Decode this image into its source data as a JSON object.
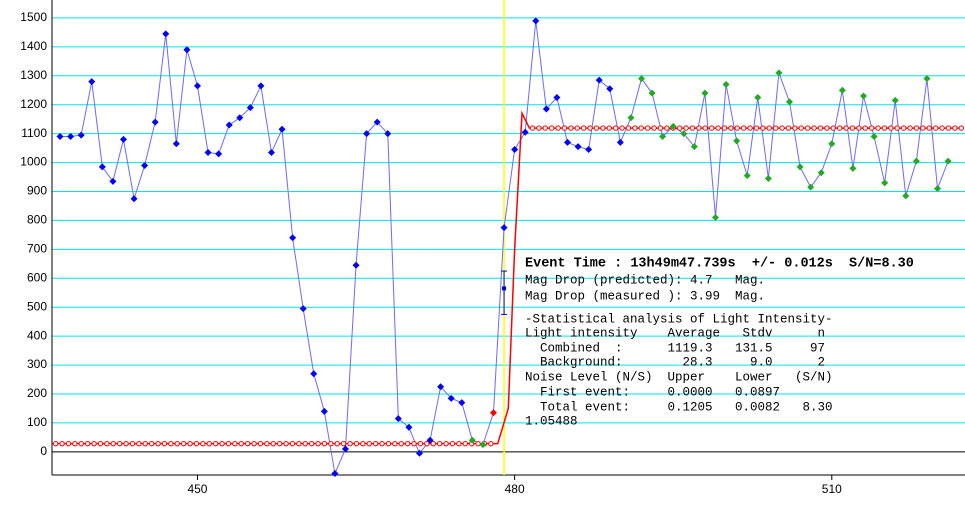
{
  "chart_data": {
    "type": "lightcurve",
    "x": [
      437,
      438,
      439,
      440,
      441,
      442,
      443,
      444,
      445,
      446,
      447,
      448,
      449,
      450,
      451,
      452,
      453,
      454,
      455,
      456,
      457,
      458,
      459,
      460,
      461,
      462,
      463,
      464,
      465,
      466,
      467,
      468,
      469,
      470,
      471,
      472,
      473,
      474,
      475,
      476,
      477,
      478,
      479,
      480,
      481,
      482,
      483,
      484,
      485,
      486,
      487,
      488,
      489,
      490,
      491,
      492,
      493,
      494,
      495,
      496,
      497,
      498,
      499,
      500,
      501,
      502,
      503,
      504,
      505,
      506,
      507,
      508,
      509,
      510,
      511,
      512,
      513,
      514,
      515,
      516,
      517,
      518,
      519,
      520,
      521
    ],
    "values": [
      1090,
      1090,
      1095,
      1280,
      985,
      935,
      1080,
      875,
      990,
      1140,
      1445,
      1065,
      1390,
      1265,
      1035,
      1030,
      1130,
      1155,
      1190,
      1265,
      1035,
      1115,
      740,
      495,
      270,
      140,
      -75,
      10,
      645,
      1100,
      1140,
      1100,
      115,
      85,
      -5,
      40,
      225,
      185,
      170,
      40,
      25,
      135,
      775,
      1045,
      1105,
      1490,
      1185,
      1225,
      1070,
      1055,
      1045,
      1285,
      1255,
      1070,
      1155,
      1290,
      1240,
      1090,
      1125,
      1100,
      1055,
      1240,
      810,
      1270,
      1075,
      955,
      1225,
      945,
      1310,
      1210,
      985,
      915,
      965,
      1065,
      1250,
      980,
      1230,
      1090,
      930,
      1215,
      885,
      1005,
      1290,
      910,
      1005
    ],
    "marker_colors": [
      "#0000ff",
      "#0000ff",
      "#0000ff",
      "#0000ff",
      "#0000ff",
      "#0000ff",
      "#0000ff",
      "#0000ff",
      "#0000ff",
      "#0000ff",
      "#0000ff",
      "#0000ff",
      "#0000ff",
      "#0000ff",
      "#0000ff",
      "#0000ff",
      "#0000ff",
      "#0000ff",
      "#0000ff",
      "#0000ff",
      "#0000ff",
      "#0000ff",
      "#0000ff",
      "#0000ff",
      "#0000ff",
      "#0000ff",
      "#0000ff",
      "#0000ff",
      "#0000ff",
      "#0000ff",
      "#0000ff",
      "#0000ff",
      "#0000ff",
      "#0000ff",
      "#0000ff",
      "#0000ff",
      "#0000ff",
      "#0000ff",
      "#0000ff",
      "#22aa22",
      "#22aa22",
      "#ff0000",
      "#0000ff",
      "#0000ff",
      "#0000ff",
      "#0000ff",
      "#0000ff",
      "#0000ff",
      "#0000ff",
      "#0000ff",
      "#0000ff",
      "#0000ff",
      "#0000ff",
      "#0000ff",
      "#22aa22",
      "#22aa22",
      "#22aa22",
      "#22aa22",
      "#22aa22",
      "#22aa22",
      "#22aa22",
      "#22aa22",
      "#22aa22",
      "#22aa22",
      "#22aa22",
      "#22aa22",
      "#22aa22",
      "#22aa22",
      "#22aa22",
      "#22aa22",
      "#22aa22",
      "#22aa22",
      "#22aa22",
      "#22aa22",
      "#22aa22",
      "#22aa22",
      "#22aa22",
      "#22aa22",
      "#22aa22",
      "#22aa22",
      "#22aa22",
      "#22aa22",
      "#22aa22",
      "#22aa22",
      "#22aa22"
    ],
    "line_color": "#6a6aff",
    "fit": {
      "color": "#ff0000",
      "x": [
        436.3,
        478.4,
        479.4,
        480.0,
        480.7,
        481.4,
        522.5
      ],
      "values": [
        28.3,
        28.3,
        150,
        700,
        1170,
        1119.3,
        1119.3
      ]
    },
    "event": {
      "x": 479.0,
      "color": "#ffff00",
      "error_low": 475,
      "error_high": 625,
      "value": 565
    },
    "xlim": [
      436.24,
      522.6
    ],
    "xticks": [
      450,
      480,
      510
    ],
    "ylim": [
      -80,
      1562
    ],
    "yticks": [
      0,
      100,
      200,
      300,
      400,
      500,
      600,
      700,
      800,
      900,
      1000,
      1100,
      1200,
      1300,
      1400,
      1500
    ],
    "grid": true,
    "grid_color": "#00e5ee",
    "annotation": {
      "title": "Event Time : 13h49m47.739s  +/- 0.012s  S/N=8.30",
      "lines": [
        "Mag Drop (predicted): 4.7   Mag.",
        "Mag Drop (measured ): 3.99  Mag.",
        "-Statistical analysis of Light Intensity-",
        "Light intensity    Average   Stdv      n",
        "  Combined  :      1119.3   131.5     97",
        "  Background:        28.3     9.0      2",
        "Noise Level (N/S)  Upper    Lower   (S/N)",
        "  First event:     0.0000   0.0897",
        "  Total event:     0.1205   0.0082   8.30",
        "1.05488"
      ]
    }
  }
}
